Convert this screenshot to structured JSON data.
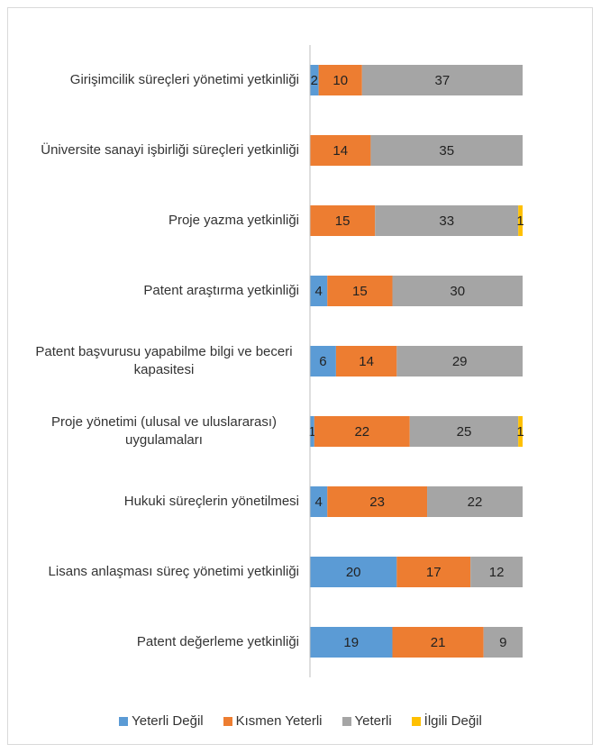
{
  "chart_data": {
    "type": "stacked-bar-horizontal",
    "categories": [
      "Girişimcilik süreçleri yönetimi yetkinliği",
      "Üniversite sanayi işbirliği süreçleri yetkinliği",
      "Proje yazma yetkinliği",
      "Patent araştırma yetkinliği",
      "Patent başvurusu yapabilme bilgi ve beceri kapasitesi",
      "Proje yönetimi (ulusal ve uluslararası) uygulamaları",
      "Hukuki süreçlerin yönetilmesi",
      "Lisans anlaşması süreç yönetimi yetkinliği",
      "Patent değerleme yetkinliği"
    ],
    "series": [
      {
        "name": "Yeterli Değil",
        "color": "#5b9bd5",
        "values": [
          2,
          null,
          null,
          4,
          6,
          1,
          4,
          20,
          19
        ]
      },
      {
        "name": "Kısmen Yeterli",
        "color": "#ed7d31",
        "values": [
          10,
          14,
          15,
          15,
          14,
          22,
          23,
          17,
          21
        ]
      },
      {
        "name": "Yeterli",
        "color": "#a5a5a5",
        "values": [
          37,
          35,
          33,
          30,
          29,
          25,
          22,
          12,
          9
        ]
      },
      {
        "name": "İlgili Değil",
        "color": "#ffc000",
        "values": [
          null,
          null,
          1,
          null,
          null,
          1,
          null,
          null,
          null
        ]
      }
    ],
    "legend": "bottom"
  }
}
